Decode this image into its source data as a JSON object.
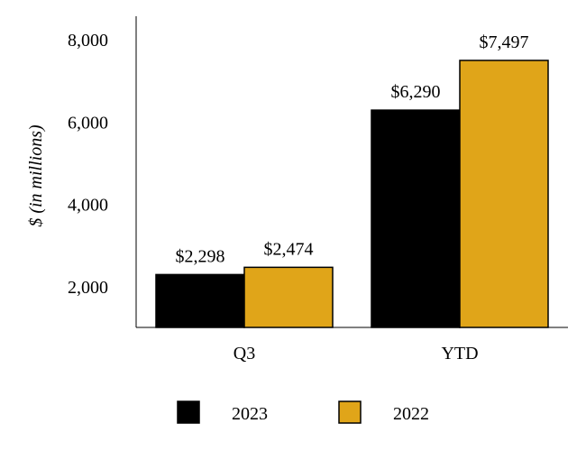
{
  "chart_data": {
    "type": "bar",
    "title": "",
    "xlabel": "",
    "ylabel": "$ (in millions)",
    "categories": [
      "Q3",
      "YTD"
    ],
    "series": [
      {
        "name": "2023",
        "values": [
          2298,
          6290
        ],
        "labels": [
          "$2,298",
          "$6,290"
        ],
        "color": "#000000"
      },
      {
        "name": "2022",
        "values": [
          2474,
          7497
        ],
        "labels": [
          "$2,474",
          "$7,497"
        ],
        "color": "#E0A519"
      }
    ],
    "ylim": [
      1000,
      8000
    ],
    "yticks": [
      2000,
      4000,
      6000,
      8000
    ],
    "ytick_labels": [
      "2,000",
      "4,000",
      "6,000",
      "8,000"
    ],
    "grid": false,
    "legend_position": "bottom"
  }
}
